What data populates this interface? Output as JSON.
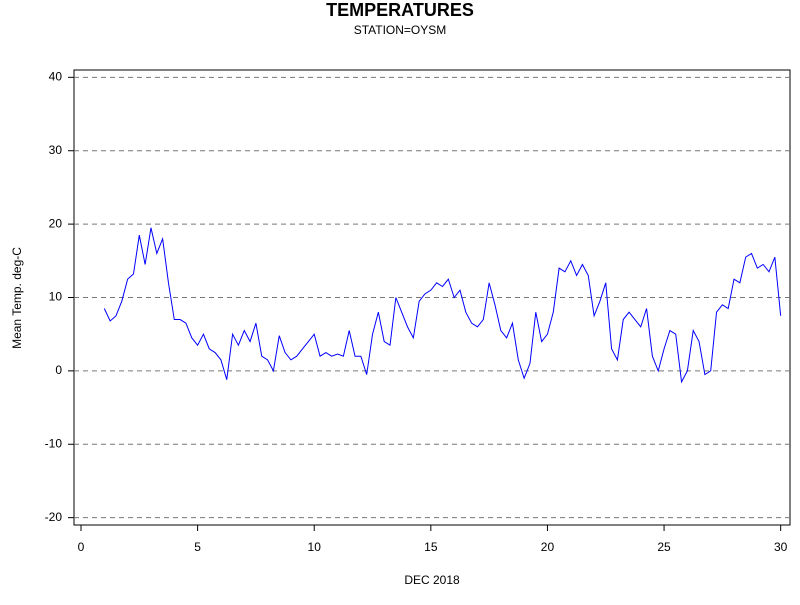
{
  "chart_data": {
    "type": "line",
    "title": "TEMPERATURES",
    "subtitle": "STATION=OYSM",
    "x_label": "DEC 2018",
    "y_label": "Mean Temp. deg-C",
    "xlim": [
      -0.3,
      30.4
    ],
    "ylim": [
      -21,
      41
    ],
    "xticks": [
      0,
      5,
      10,
      15,
      20,
      25,
      30
    ],
    "yticks": [
      -20,
      -10,
      0,
      10,
      20,
      30,
      40
    ],
    "grid": true,
    "x": [
      1,
      1.25,
      1.5,
      1.75,
      2,
      2.25,
      2.5,
      2.75,
      3,
      3.25,
      3.5,
      3.75,
      4,
      4.25,
      4.5,
      4.75,
      5,
      5.25,
      5.5,
      5.75,
      6,
      6.25,
      6.5,
      6.75,
      7,
      7.25,
      7.5,
      7.75,
      8,
      8.25,
      8.5,
      8.75,
      9,
      9.25,
      9.5,
      9.75,
      10,
      10.25,
      10.5,
      10.75,
      11,
      11.25,
      11.5,
      11.75,
      12,
      12.25,
      12.5,
      12.75,
      13,
      13.25,
      13.5,
      13.75,
      14,
      14.25,
      14.5,
      14.75,
      15,
      15.25,
      15.5,
      15.75,
      16,
      16.25,
      16.5,
      16.75,
      17,
      17.25,
      17.5,
      17.75,
      18,
      18.25,
      18.5,
      18.75,
      19,
      19.25,
      19.5,
      19.75,
      20,
      20.25,
      20.5,
      20.75,
      21,
      21.25,
      21.5,
      21.75,
      22,
      22.25,
      22.5,
      22.75,
      23,
      23.25,
      23.5,
      23.75,
      24,
      24.25,
      24.5,
      24.75,
      25,
      25.25,
      25.5,
      25.75,
      26,
      26.25,
      26.5,
      26.75,
      27,
      27.25,
      27.5,
      27.75,
      28,
      28.25,
      28.5,
      28.75,
      29,
      29.25,
      29.5,
      29.75,
      30
    ],
    "series": [
      {
        "name": "Mean Temp",
        "color": "#0000ff",
        "values": [
          8.5,
          6.8,
          7.5,
          9.5,
          12.5,
          13.2,
          18.5,
          14.5,
          19.5,
          16,
          18,
          12,
          7,
          7,
          6.5,
          4.5,
          3.5,
          5,
          3,
          2.5,
          1.5,
          -1.2,
          5,
          3.5,
          5.5,
          4,
          6.5,
          2,
          1.5,
          0,
          4.8,
          2.5,
          1.5,
          2,
          3,
          4,
          5,
          2,
          2.5,
          2,
          2.3,
          2,
          5.5,
          2,
          2,
          -0.5,
          5,
          8,
          4,
          3.5,
          10,
          8,
          6,
          4.5,
          9.5,
          10.5,
          11,
          12,
          11.5,
          12.5,
          10,
          11,
          8,
          6.5,
          6,
          7,
          12,
          9,
          5.5,
          4.5,
          6.5,
          1.5,
          -1,
          1,
          8,
          4,
          5,
          8,
          14,
          13.5,
          15,
          13,
          14.5,
          13,
          7.5,
          9.5,
          12,
          3,
          1.5,
          7,
          8,
          7,
          6,
          8.5,
          2,
          0,
          3,
          5.5,
          5,
          -1.5,
          0,
          5.5,
          4,
          -0.5,
          0,
          8,
          9,
          8.5,
          12.5,
          12,
          15.5,
          16,
          14,
          14.5,
          13.5,
          15.5,
          7.5
        ]
      }
    ]
  }
}
